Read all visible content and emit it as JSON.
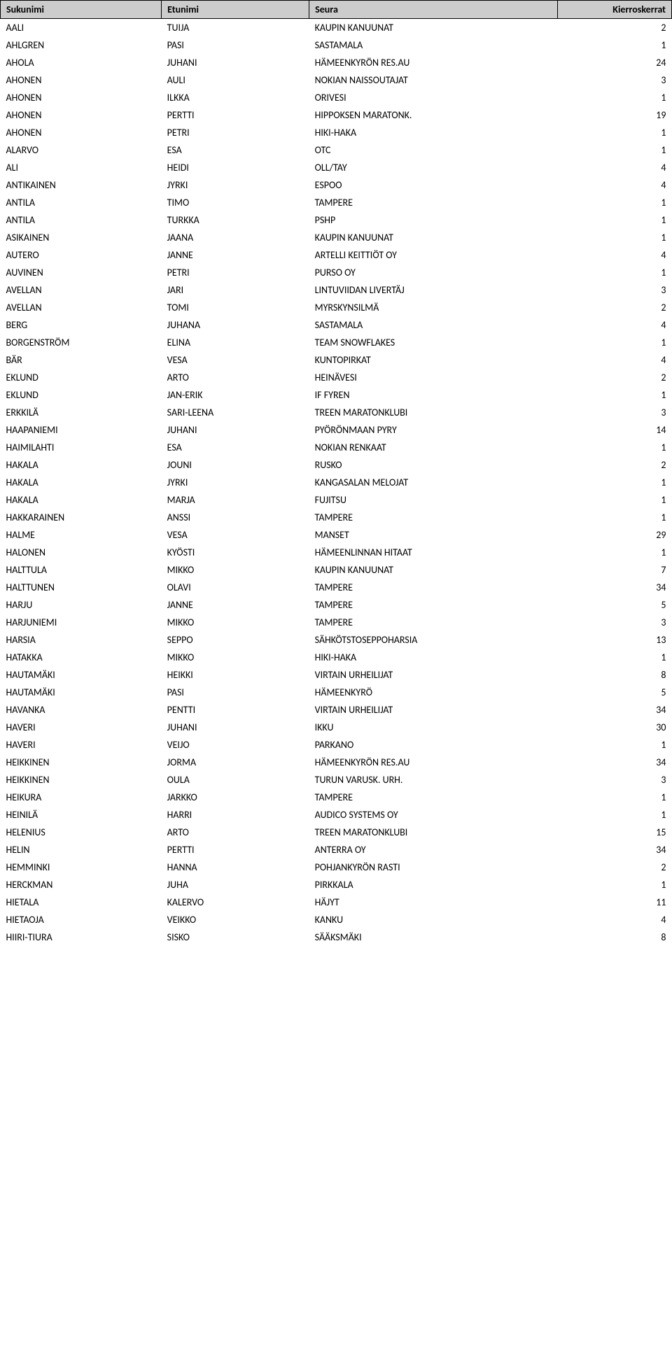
{
  "headers": {
    "sukunimi": "Sukunimi",
    "etunimi": "Etunimi",
    "seura": "Seura",
    "kierroskerrat": "Kierroskerrat"
  },
  "rows": [
    {
      "sukunimi": "AALI",
      "etunimi": "TUIJA",
      "seura": "KAUPIN KANUUNAT",
      "kierros": "2"
    },
    {
      "sukunimi": "AHLGREN",
      "etunimi": "PASI",
      "seura": "SASTAMALA",
      "kierros": "1"
    },
    {
      "sukunimi": "AHOLA",
      "etunimi": "JUHANI",
      "seura": "HÄMEENKYRÖN RES.AU",
      "kierros": "24"
    },
    {
      "sukunimi": "AHONEN",
      "etunimi": "AULI",
      "seura": "NOKIAN NAISSOUTAJAT",
      "kierros": "3"
    },
    {
      "sukunimi": "AHONEN",
      "etunimi": "ILKKA",
      "seura": "ORIVESI",
      "kierros": "1"
    },
    {
      "sukunimi": "AHONEN",
      "etunimi": "PERTTI",
      "seura": "HIPPOKSEN MARATONK.",
      "kierros": "19"
    },
    {
      "sukunimi": "AHONEN",
      "etunimi": "PETRI",
      "seura": "HIKI-HAKA",
      "kierros": "1"
    },
    {
      "sukunimi": "ALARVO",
      "etunimi": "ESA",
      "seura": "OTC",
      "kierros": "1"
    },
    {
      "sukunimi": "ALI",
      "etunimi": "HEIDI",
      "seura": "OLL/TAY",
      "kierros": "4"
    },
    {
      "sukunimi": "ANTIKAINEN",
      "etunimi": "JYRKI",
      "seura": "ESPOO",
      "kierros": "4"
    },
    {
      "sukunimi": "ANTILA",
      "etunimi": "TIMO",
      "seura": "TAMPERE",
      "kierros": "1"
    },
    {
      "sukunimi": "ANTILA",
      "etunimi": "TURKKA",
      "seura": "PSHP",
      "kierros": "1"
    },
    {
      "sukunimi": "ASIKAINEN",
      "etunimi": "JAANA",
      "seura": "KAUPIN KANUUNAT",
      "kierros": "1"
    },
    {
      "sukunimi": "AUTERO",
      "etunimi": "JANNE",
      "seura": "ARTELLI KEITTIÖT OY",
      "kierros": "4"
    },
    {
      "sukunimi": "AUVINEN",
      "etunimi": "PETRI",
      "seura": "PURSO OY",
      "kierros": "1"
    },
    {
      "sukunimi": "AVELLAN",
      "etunimi": "JARI",
      "seura": "LINTUVIIDAN LIVERTÄJ",
      "kierros": "3"
    },
    {
      "sukunimi": "AVELLAN",
      "etunimi": "TOMI",
      "seura": "MYRSKYNSILMÄ",
      "kierros": "2"
    },
    {
      "sukunimi": "BERG",
      "etunimi": "JUHANA",
      "seura": "SASTAMALA",
      "kierros": "4"
    },
    {
      "sukunimi": "BORGENSTRÖM",
      "etunimi": "ELINA",
      "seura": "TEAM SNOWFLAKES",
      "kierros": "1"
    },
    {
      "sukunimi": "BÄR",
      "etunimi": "VESA",
      "seura": "KUNTOPIRKAT",
      "kierros": "4"
    },
    {
      "sukunimi": "EKLUND",
      "etunimi": "ARTO",
      "seura": "HEINÄVESI",
      "kierros": "2"
    },
    {
      "sukunimi": "EKLUND",
      "etunimi": "JAN-ERIK",
      "seura": "IF FYREN",
      "kierros": "1"
    },
    {
      "sukunimi": "ERKKILÄ",
      "etunimi": "SARI-LEENA",
      "seura": "TREEN MARATONKLUBI",
      "kierros": "3"
    },
    {
      "sukunimi": "HAAPANIEMI",
      "etunimi": "JUHANI",
      "seura": "PYÖRÖNMAAN PYRY",
      "kierros": "14"
    },
    {
      "sukunimi": "HAIMILAHTI",
      "etunimi": "ESA",
      "seura": "NOKIAN RENKAAT",
      "kierros": "1"
    },
    {
      "sukunimi": "HAKALA",
      "etunimi": "JOUNI",
      "seura": "RUSKO",
      "kierros": "2"
    },
    {
      "sukunimi": "HAKALA",
      "etunimi": "JYRKI",
      "seura": "KANGASALAN MELOJAT",
      "kierros": "1"
    },
    {
      "sukunimi": "HAKALA",
      "etunimi": "MARJA",
      "seura": "FUJITSU",
      "kierros": "1"
    },
    {
      "sukunimi": "HAKKARAINEN",
      "etunimi": "ANSSI",
      "seura": "TAMPERE",
      "kierros": "1"
    },
    {
      "sukunimi": "HALME",
      "etunimi": "VESA",
      "seura": "MANSET",
      "kierros": "29"
    },
    {
      "sukunimi": "HALONEN",
      "etunimi": "KYÖSTI",
      "seura": "HÄMEENLINNAN HITAAT",
      "kierros": "1"
    },
    {
      "sukunimi": "HALTTULA",
      "etunimi": "MIKKO",
      "seura": "KAUPIN KANUUNAT",
      "kierros": "7"
    },
    {
      "sukunimi": "HALTTUNEN",
      "etunimi": "OLAVI",
      "seura": "TAMPERE",
      "kierros": "34"
    },
    {
      "sukunimi": "HARJU",
      "etunimi": "JANNE",
      "seura": "TAMPERE",
      "kierros": "5"
    },
    {
      "sukunimi": "HARJUNIEMI",
      "etunimi": "MIKKO",
      "seura": "TAMPERE",
      "kierros": "3"
    },
    {
      "sukunimi": "HARSIA",
      "etunimi": "SEPPO",
      "seura": "SÄHKÖTSTOSEPPOHARSIA",
      "kierros": "13"
    },
    {
      "sukunimi": "HATAKKA",
      "etunimi": "MIKKO",
      "seura": "HIKI-HAKA",
      "kierros": "1"
    },
    {
      "sukunimi": "HAUTAMÄKI",
      "etunimi": "HEIKKI",
      "seura": "VIRTAIN URHEILIJAT",
      "kierros": "8"
    },
    {
      "sukunimi": "HAUTAMÄKI",
      "etunimi": "PASI",
      "seura": "HÄMEENKYRÖ",
      "kierros": "5"
    },
    {
      "sukunimi": "HAVANKA",
      "etunimi": "PENTTI",
      "seura": "VIRTAIN URHEILIJAT",
      "kierros": "34"
    },
    {
      "sukunimi": "HAVERI",
      "etunimi": "JUHANI",
      "seura": "IKKU",
      "kierros": "30"
    },
    {
      "sukunimi": "HAVERI",
      "etunimi": "VEIJO",
      "seura": "PARKANO",
      "kierros": "1"
    },
    {
      "sukunimi": "HEIKKINEN",
      "etunimi": "JORMA",
      "seura": "HÄMEENKYRÖN RES.AU",
      "kierros": "34"
    },
    {
      "sukunimi": "HEIKKINEN",
      "etunimi": "OULA",
      "seura": "TURUN VARUSK. URH.",
      "kierros": "3"
    },
    {
      "sukunimi": "HEIKURA",
      "etunimi": "JARKKO",
      "seura": "TAMPERE",
      "kierros": "1"
    },
    {
      "sukunimi": "HEINILÄ",
      "etunimi": "HARRI",
      "seura": "AUDICO SYSTEMS OY",
      "kierros": "1"
    },
    {
      "sukunimi": "HELENIUS",
      "etunimi": "ARTO",
      "seura": "TREEN MARATONKLUBI",
      "kierros": "15"
    },
    {
      "sukunimi": "HELIN",
      "etunimi": "PERTTI",
      "seura": "ANTERRA OY",
      "kierros": "34"
    },
    {
      "sukunimi": "HEMMINKI",
      "etunimi": "HANNA",
      "seura": "POHJANKYRÖN RASTI",
      "kierros": "2"
    },
    {
      "sukunimi": "HERCKMAN",
      "etunimi": "JUHA",
      "seura": "PIRKKALA",
      "kierros": "1"
    },
    {
      "sukunimi": "HIETALA",
      "etunimi": "KALERVO",
      "seura": "HÄJYT",
      "kierros": "11"
    },
    {
      "sukunimi": "HIETAOJA",
      "etunimi": "VEIKKO",
      "seura": "KANKU",
      "kierros": "4"
    },
    {
      "sukunimi": "HIIRI-TIURA",
      "etunimi": "SISKO",
      "seura": "SÄÄKSMÄKI",
      "kierros": "8"
    }
  ]
}
